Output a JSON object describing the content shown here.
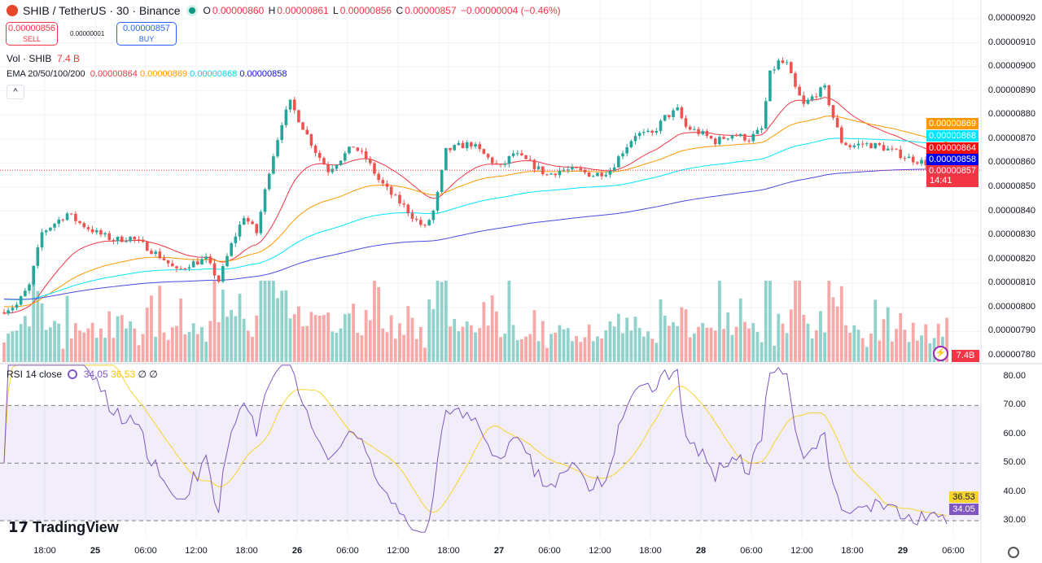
{
  "header": {
    "symbol_title": "SHIB / TetherUS · 30 · Binance",
    "o_label": "O",
    "o": "0.00000860",
    "h_label": "H",
    "h": "0.00000861",
    "l_label": "L",
    "l": "0.00000856",
    "c_label": "C",
    "c": "0.00000857",
    "change": "−0.00000004 (−0.46%)"
  },
  "trade": {
    "sell_price": "0.00000856",
    "sell_label": "SELL",
    "spread": "0.00000001",
    "buy_price": "0.00000857",
    "buy_label": "BUY"
  },
  "volume_legend": {
    "label": "Vol · SHIB",
    "value": "7.4 B"
  },
  "ema_legend": {
    "label": "EMA 20/50/100/200",
    "values": [
      "0.00000864",
      "0.00000869",
      "0.00000868",
      "0.00000858"
    ]
  },
  "rsi_legend": {
    "label": "RSI 14 close",
    "rsi": "34.05",
    "ma": "36.53",
    "extra1": "∅",
    "extra2": "∅"
  },
  "price_axis": {
    "ticks": [
      "0.00000920",
      "0.00000910",
      "0.00000900",
      "0.00000890",
      "0.00000880",
      "0.00000870",
      "0.00000860",
      "0.00000850",
      "0.00000840",
      "0.00000830",
      "0.00000820",
      "0.00000810",
      "0.00000800",
      "0.00000790",
      "0.00000780"
    ],
    "tags": [
      {
        "value": "0.00000869",
        "color": "#ff9800"
      },
      {
        "value": "0.00000868",
        "color": "#00e5ff"
      },
      {
        "value": "0.00000864",
        "color": "#f21010"
      },
      {
        "value": "0.00000858",
        "color": "#0000f0"
      }
    ],
    "current": {
      "price": "0.00000857",
      "countdown": "14:41",
      "color": "#f23645"
    },
    "volume_tag": "7.4B"
  },
  "rsi_axis": {
    "ticks": [
      "80.00",
      "70.00",
      "60.00",
      "50.00",
      "40.00",
      "30.00"
    ],
    "tags": [
      {
        "value": "36.53",
        "color": "#f7d330"
      },
      {
        "value": "34.05",
        "color": "#7e57c2"
      }
    ]
  },
  "time_axis": {
    "labels": [
      "18:00",
      "25",
      "06:00",
      "12:00",
      "18:00",
      "26",
      "06:00",
      "12:00",
      "18:00",
      "27",
      "06:00",
      "12:00",
      "18:00",
      "28",
      "06:00",
      "12:00",
      "18:00",
      "29",
      "06:00"
    ]
  },
  "logo": "TradingView",
  "colors": {
    "up": "#26a69a",
    "down": "#ef5350",
    "ema20": "#f23645",
    "ema50": "#ff9800",
    "ema100": "#00e5ff",
    "ema200": "#4a4ae0",
    "rsi": "#7e57c2",
    "rsi_ma": "#f7d330"
  },
  "chart_data": {
    "type": "candlestick",
    "symbol": "SHIB / TetherUS",
    "interval": "30",
    "ylim": [
      7.8e-06,
      9.2e-06
    ],
    "rsi_ylim": [
      30,
      80
    ],
    "rsi_bands": [
      70,
      50,
      30
    ],
    "close_path": [
      [
        "24 13:00",
        7.99e-06
      ],
      [
        "24 14:30",
        8.01e-06
      ],
      [
        "24 16:00",
        8.09e-06
      ],
      [
        "24 17:30",
        8.31e-06
      ],
      [
        "24 19:00",
        8.35e-06
      ],
      [
        "24 20:30",
        8.39e-06
      ],
      [
        "24 22:00",
        8.35e-06
      ],
      [
        "25 00:00",
        8.31e-06
      ],
      [
        "25 02:00",
        8.28e-06
      ],
      [
        "25 04:00",
        8.29e-06
      ],
      [
        "25 06:00",
        8.25e-06
      ],
      [
        "25 08:00",
        8.2e-06
      ],
      [
        "25 09:30",
        8.15e-06
      ],
      [
        "25 11:00",
        8.18e-06
      ],
      [
        "25 13:00",
        8.2e-06
      ],
      [
        "25 14:30",
        8.11e-06
      ],
      [
        "25 16:00",
        8.26e-06
      ],
      [
        "25 17:30",
        8.38e-06
      ],
      [
        "25 19:00",
        8.31e-06
      ],
      [
        "25 20:30",
        8.57e-06
      ],
      [
        "25 22:00",
        8.77e-06
      ],
      [
        "25 23:00",
        8.85e-06
      ],
      [
        "26 00:30",
        8.75e-06
      ],
      [
        "26 02:00",
        8.65e-06
      ],
      [
        "26 03:30",
        8.57e-06
      ],
      [
        "26 05:00",
        8.62e-06
      ],
      [
        "26 06:30",
        8.67e-06
      ],
      [
        "26 08:00",
        8.62e-06
      ],
      [
        "26 09:30",
        8.53e-06
      ],
      [
        "26 11:00",
        8.47e-06
      ],
      [
        "26 12:30",
        8.42e-06
      ],
      [
        "26 14:00",
        8.36e-06
      ],
      [
        "26 15:00",
        8.33e-06
      ],
      [
        "26 16:00",
        8.4e-06
      ],
      [
        "26 16:30",
        8.47e-06
      ],
      [
        "26 17:30",
        8.65e-06
      ],
      [
        "26 19:00",
        8.67e-06
      ],
      [
        "26 20:30",
        8.68e-06
      ],
      [
        "26 22:30",
        8.62e-06
      ],
      [
        "27 00:00",
        8.58e-06
      ],
      [
        "27 01:30",
        8.64e-06
      ],
      [
        "27 03:30",
        8.6e-06
      ],
      [
        "27 05:30",
        8.55e-06
      ],
      [
        "27 07:00",
        8.57e-06
      ],
      [
        "27 09:00",
        8.57e-06
      ],
      [
        "27 11:00",
        8.55e-06
      ],
      [
        "27 13:00",
        8.57e-06
      ],
      [
        "27 14:30",
        8.65e-06
      ],
      [
        "27 16:00",
        8.72e-06
      ],
      [
        "27 18:00",
        8.72e-06
      ],
      [
        "27 19:30",
        8.79e-06
      ],
      [
        "27 21:00",
        8.82e-06
      ],
      [
        "27 22:00",
        8.75e-06
      ],
      [
        "28 00:00",
        8.72e-06
      ],
      [
        "28 01:30",
        8.69e-06
      ],
      [
        "28 03:30",
        8.72e-06
      ],
      [
        "28 05:30",
        8.7e-06
      ],
      [
        "28 07:00",
        8.74e-06
      ],
      [
        "28 08:00",
        8.97e-06
      ],
      [
        "28 09:00",
        9.02e-06
      ],
      [
        "28 10:00",
        9.01e-06
      ],
      [
        "28 11:00",
        8.91e-06
      ],
      [
        "28 12:00",
        8.84e-06
      ],
      [
        "28 13:30",
        8.89e-06
      ],
      [
        "28 14:30",
        8.91e-06
      ],
      [
        "28 15:30",
        8.79e-06
      ],
      [
        "28 16:30",
        8.69e-06
      ],
      [
        "28 17:30",
        8.67e-06
      ],
      [
        "28 19:00",
        8.68e-06
      ],
      [
        "28 21:00",
        8.67e-06
      ],
      [
        "28 22:30",
        8.65e-06
      ],
      [
        "29 00:30",
        8.62e-06
      ],
      [
        "29 02:30",
        8.6e-06
      ],
      [
        "29 05:00",
        8.57e-06
      ]
    ],
    "last_candle": {
      "open": 8.6e-06,
      "high": 8.61e-06,
      "low": 8.56e-06,
      "close": 8.57e-06
    },
    "ema": {
      "periods": [
        20,
        50,
        100,
        200
      ],
      "last": [
        8.64e-06,
        8.69e-06,
        8.68e-06,
        8.58e-06
      ]
    },
    "volume_last": "7.4B",
    "rsi": {
      "period": 14,
      "last": 34.05,
      "ma_last": 36.53
    }
  }
}
